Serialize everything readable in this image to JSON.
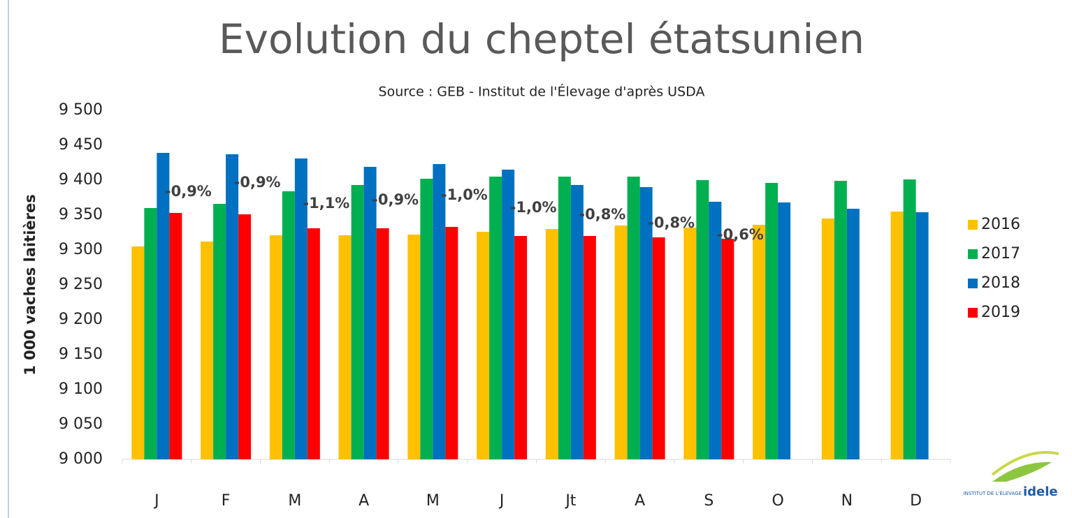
{
  "chart_data": {
    "type": "bar",
    "title": "Evolution du cheptel étatsunien",
    "subtitle": "Source : GEB - Institut de l'Élevage d'après USDA",
    "y_label": "1 000  vaches laitières",
    "categories": [
      "J",
      "F",
      "M",
      "A",
      "M",
      "J",
      "Jt",
      "A",
      "S",
      "O",
      "N",
      "D"
    ],
    "series": [
      {
        "name": "2016",
        "color": "#ffc000",
        "values": [
          9305,
          9312,
          9321,
          9321,
          9322,
          9326,
          9330,
          9335,
          9332,
          9336,
          9345,
          9355
        ]
      },
      {
        "name": "2017",
        "color": "#00b050",
        "values": [
          9360,
          9366,
          9384,
          9393,
          9402,
          9405,
          9405,
          9405,
          9400,
          9396,
          9399,
          9401
        ]
      },
      {
        "name": "2018",
        "color": "#0070c0",
        "values": [
          9439,
          9437,
          9431,
          9419,
          9423,
          9415,
          9393,
          9390,
          9369,
          9368,
          9359,
          9354
        ]
      },
      {
        "name": "2019",
        "color": "#ff0000",
        "values": [
          9353,
          9351,
          9331,
          9331,
          9333,
          9320,
          9320,
          9318,
          9316,
          null,
          null,
          null
        ]
      }
    ],
    "annotations": [
      "-0,9%",
      "-0,9%",
      "-1,1%",
      "-0,9%",
      "-1,0%",
      "-1,0%",
      "-0,8%",
      "-0,8%",
      "-0,6%"
    ],
    "ylim": [
      9000,
      9500
    ],
    "yticks": [
      {
        "value": 9000,
        "label": "9 000"
      },
      {
        "value": 9050,
        "label": "9 050"
      },
      {
        "value": 9100,
        "label": "9 100"
      },
      {
        "value": 9150,
        "label": "9 150"
      },
      {
        "value": 9200,
        "label": "9 200"
      },
      {
        "value": 9250,
        "label": "9 250"
      },
      {
        "value": 9300,
        "label": "9 300"
      },
      {
        "value": 9350,
        "label": "9 350"
      },
      {
        "value": 9400,
        "label": "9 400"
      },
      {
        "value": 9450,
        "label": "9 450"
      },
      {
        "value": 9500,
        "label": "9 500"
      }
    ],
    "grid": false,
    "legend": "right",
    "logo": {
      "small": "INSTITUT DE L'ÉLEVAGE",
      "big": "idele"
    }
  }
}
